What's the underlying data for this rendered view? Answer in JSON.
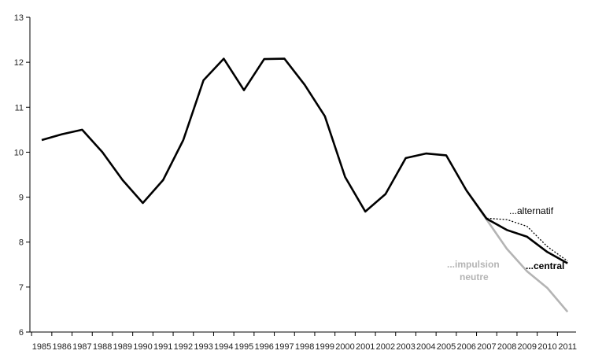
{
  "chart_data": {
    "type": "line",
    "title": "",
    "xlabel": "",
    "ylabel": "",
    "ylim": [
      6,
      13
    ],
    "yticks": [
      6,
      7,
      8,
      9,
      10,
      11,
      12,
      13
    ],
    "xticks": [
      1985,
      1986,
      1987,
      1988,
      1989,
      1990,
      1991,
      1992,
      1993,
      1994,
      1995,
      1996,
      1997,
      1998,
      1999,
      2000,
      2001,
      2002,
      2003,
      2004,
      2005,
      2006,
      2007,
      2008,
      2009,
      2010,
      2011
    ],
    "grid": false,
    "legend": "none",
    "series": [
      {
        "key": "history",
        "color": "#000000",
        "style": "solid",
        "points": [
          [
            1985,
            10.27
          ],
          [
            1986,
            10.4
          ],
          [
            1987,
            10.5
          ],
          [
            1988,
            10.0
          ],
          [
            1989,
            9.38
          ],
          [
            1990,
            8.87
          ],
          [
            1991,
            9.38
          ],
          [
            1992,
            10.27
          ],
          [
            1993,
            11.6
          ],
          [
            1994,
            12.08
          ],
          [
            1995,
            11.38
          ],
          [
            1996,
            12.07
          ],
          [
            1997,
            12.08
          ],
          [
            1998,
            11.5
          ],
          [
            1999,
            10.8
          ],
          [
            2000,
            9.45
          ],
          [
            2001,
            8.68
          ],
          [
            2002,
            9.07
          ],
          [
            2003,
            9.87
          ],
          [
            2004,
            9.97
          ],
          [
            2005,
            9.93
          ],
          [
            2006,
            9.15
          ]
        ]
      },
      {
        "key": "central",
        "color": "#000000",
        "style": "solid",
        "points": [
          [
            2006,
            9.15
          ],
          [
            2007,
            8.52
          ],
          [
            2008,
            8.27
          ],
          [
            2009,
            8.12
          ],
          [
            2010,
            7.78
          ],
          [
            2011,
            7.53
          ]
        ]
      },
      {
        "key": "alternatif",
        "color": "#000000",
        "style": "dotted",
        "points": [
          [
            2006,
            9.15
          ],
          [
            2007,
            8.53
          ],
          [
            2008,
            8.5
          ],
          [
            2009,
            8.35
          ],
          [
            2010,
            7.9
          ],
          [
            2011,
            7.58
          ]
        ]
      },
      {
        "key": "impulsion-neutre",
        "color": "#b4b4b4",
        "style": "solid",
        "points": [
          [
            2006,
            9.15
          ],
          [
            2007,
            8.5
          ],
          [
            2008,
            7.85
          ],
          [
            2009,
            7.35
          ],
          [
            2010,
            6.98
          ],
          [
            2011,
            6.45
          ]
        ]
      }
    ],
    "annotations": [
      {
        "key": "alternatif",
        "text": "...alternatif",
        "color": "#000000",
        "bold": false
      },
      {
        "key": "central",
        "text": "...central",
        "color": "#000000",
        "bold": true
      },
      {
        "key": "impulsion-1",
        "text": "...impulsion",
        "color": "#b4b4b4",
        "bold": true
      },
      {
        "key": "impulsion-2",
        "text": "neutre",
        "color": "#b4b4b4",
        "bold": true
      }
    ]
  }
}
